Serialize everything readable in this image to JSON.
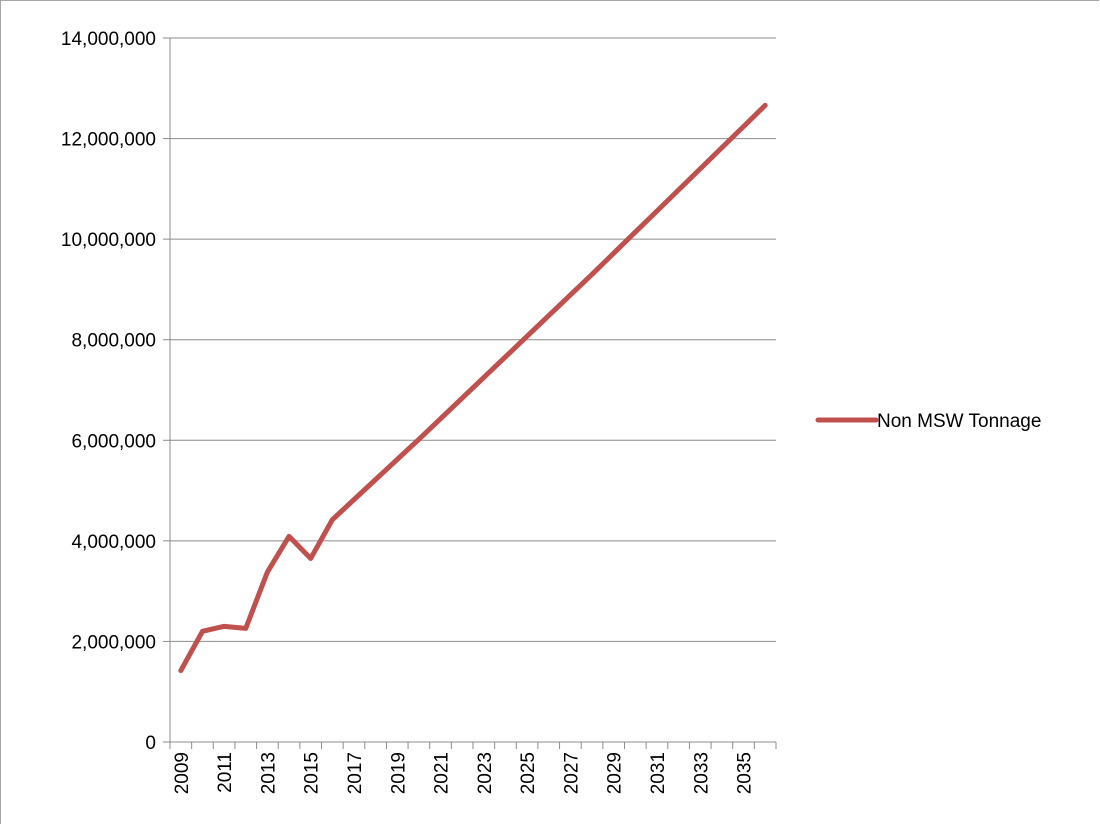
{
  "chart_data": {
    "type": "line",
    "title": "",
    "xlabel": "",
    "ylabel": "",
    "ylim": [
      0,
      14000000
    ],
    "y_ticks": [
      "0",
      "2,000,000",
      "4,000,000",
      "6,000,000",
      "8,000,000",
      "10,000,000",
      "12,000,000",
      "14,000,000"
    ],
    "x": [
      2009,
      2010,
      2011,
      2012,
      2013,
      2014,
      2015,
      2016,
      2017,
      2018,
      2019,
      2020,
      2021,
      2022,
      2023,
      2024,
      2025,
      2026,
      2027,
      2028,
      2029,
      2030,
      2031,
      2032,
      2033,
      2034,
      2035,
      2036
    ],
    "x_tick_labels": [
      "2009",
      "2011",
      "2013",
      "2015",
      "2017",
      "2019",
      "2021",
      "2023",
      "2025",
      "2027",
      "2029",
      "2031",
      "2033",
      "2035"
    ],
    "series": [
      {
        "name": "Non MSW Tonnage",
        "color": "#c0504d",
        "values": [
          1420000,
          2200000,
          2300000,
          2260000,
          3380000,
          4090000,
          3650000,
          4420000,
          4820000,
          5220000,
          5620000,
          6020000,
          6430000,
          6840000,
          7250000,
          7660000,
          8070000,
          8480000,
          8890000,
          9300000,
          9720000,
          10140000,
          10560000,
          10980000,
          11400000,
          11820000,
          12240000,
          12660000
        ]
      }
    ],
    "grid": true,
    "legend": "right"
  }
}
